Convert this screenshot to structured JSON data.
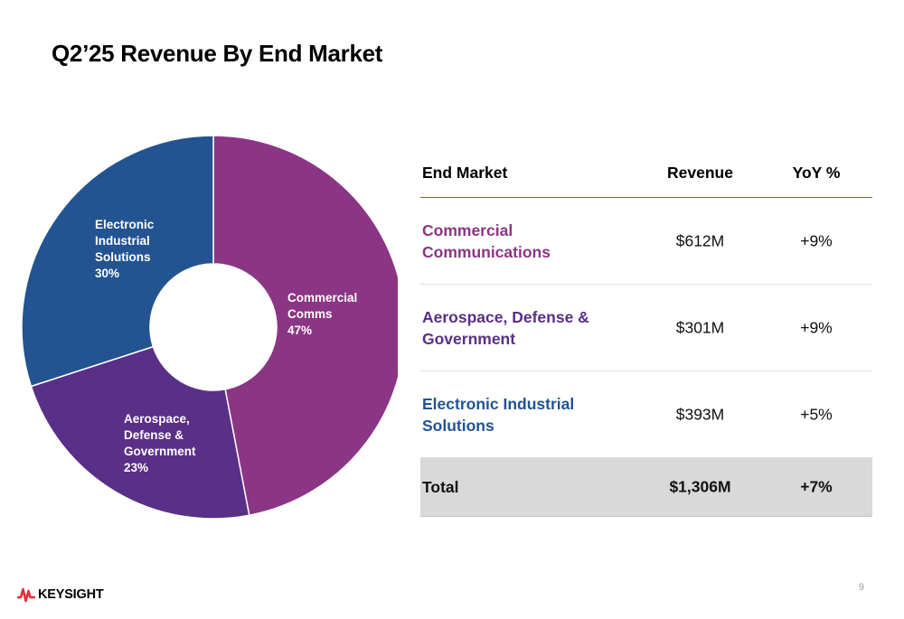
{
  "title": "Q2’25 Revenue By End Market",
  "colors": {
    "commercial_comms": "#8b3585",
    "aerospace": "#5a2f87",
    "electronic_industrial": "#235491",
    "accent_line": "#e0313a",
    "total_bg": "#d9d9d9"
  },
  "chart_data": {
    "type": "pie",
    "variant": "donut",
    "categories": [
      "Commercial Comms",
      "Aerospace, Defense & Government",
      "Electronic Industrial Solutions"
    ],
    "values": [
      47,
      23,
      30
    ],
    "unit": "%",
    "slice_labels": [
      {
        "lines": [
          "Commercial",
          "Comms"
        ],
        "pct": "47%"
      },
      {
        "lines": [
          "Aerospace,",
          "Defense &",
          "Government"
        ],
        "pct": "23%"
      },
      {
        "lines": [
          "Electronic",
          "Industrial",
          "Solutions"
        ],
        "pct": "30%"
      }
    ],
    "colors": [
      "#8b3585",
      "#5a2f87",
      "#235491"
    ]
  },
  "table": {
    "headers": {
      "market": "End Market",
      "revenue": "Revenue",
      "yoy": "YoY %"
    },
    "rows": [
      {
        "market": "Commercial Communications",
        "revenue": "$612M",
        "yoy": "+9%",
        "color": "#8b3585"
      },
      {
        "market": "Aerospace, Defense & Government",
        "revenue": "$301M",
        "yoy": "+9%",
        "color": "#5a2f87"
      },
      {
        "market": "Electronic Industrial Solutions",
        "revenue": "$393M",
        "yoy": "+5%",
        "color": "#235491"
      }
    ],
    "total": {
      "market": "Total",
      "revenue": "$1,306M",
      "yoy": "+7%"
    }
  },
  "footer": {
    "logo_text": "KEYSIGHT",
    "logo_icon": "keysight-wave-icon",
    "page_number": "9"
  }
}
